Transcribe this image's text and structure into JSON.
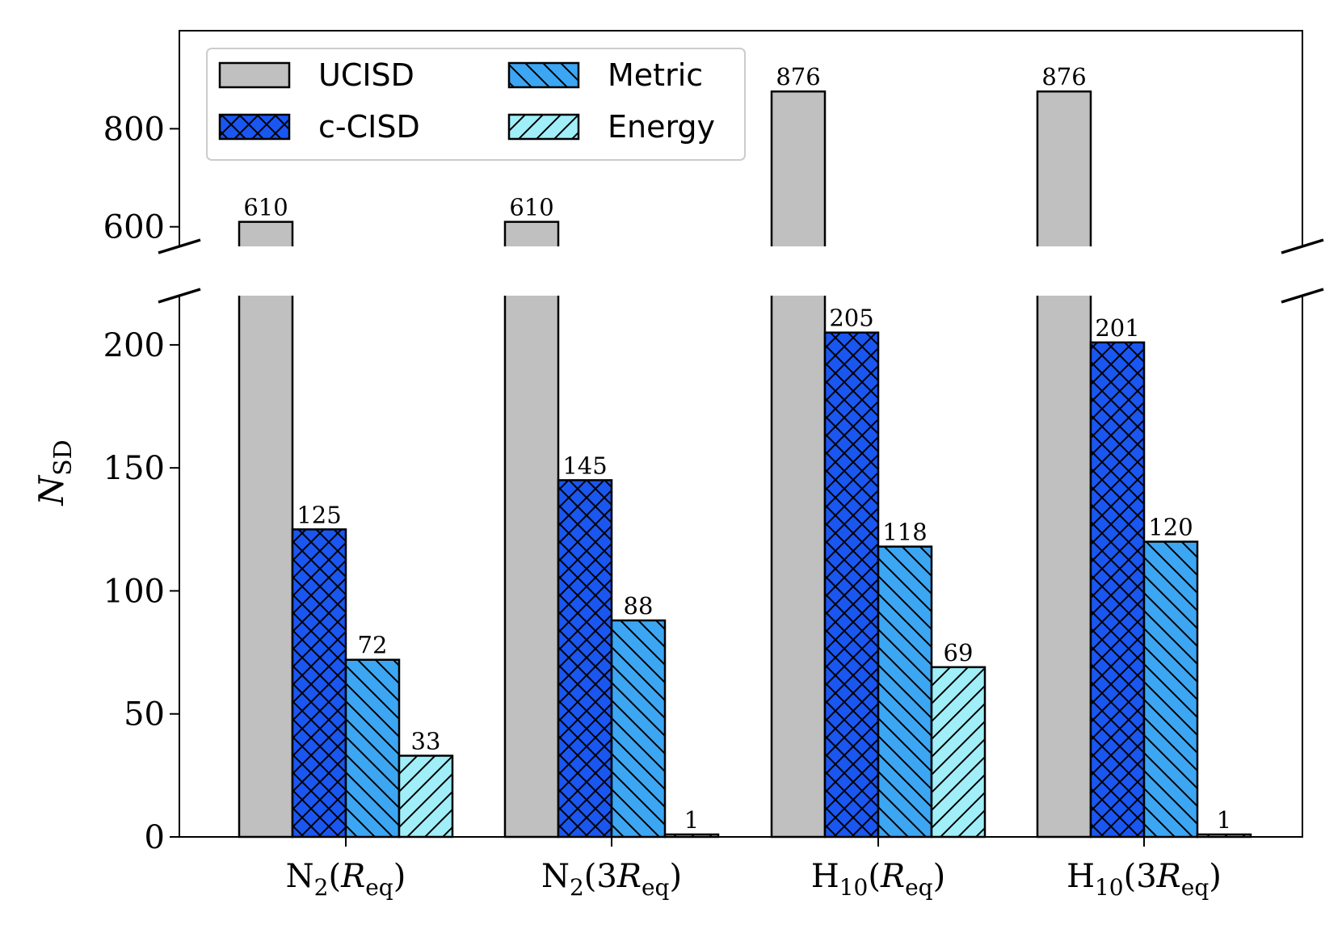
{
  "chart_data": {
    "type": "bar",
    "ylabel": "N",
    "ylabel_sub": "SD",
    "categories": [
      {
        "base": "N",
        "sub": "2",
        "args": [
          {
            "t": "("
          },
          {
            "t": "R",
            "i": true
          },
          {
            "t": "eq",
            "sub": true
          },
          {
            "t": ")"
          }
        ]
      },
      {
        "base": "N",
        "sub": "2",
        "args": [
          {
            "t": "(3"
          },
          {
            "t": "R",
            "i": true
          },
          {
            "t": "eq",
            "sub": true
          },
          {
            "t": ")"
          }
        ]
      },
      {
        "base": "H",
        "sub": "10",
        "args": [
          {
            "t": "("
          },
          {
            "t": "R",
            "i": true
          },
          {
            "t": "eq",
            "sub": true
          },
          {
            "t": ")"
          }
        ]
      },
      {
        "base": "H",
        "sub": "10",
        "args": [
          {
            "t": "(3"
          },
          {
            "t": "R",
            "i": true
          },
          {
            "t": "eq",
            "sub": true
          },
          {
            "t": ")"
          }
        ]
      }
    ],
    "series": [
      {
        "name": "UCISD",
        "values": [
          610,
          610,
          876,
          876
        ],
        "color": "#c0c0c0",
        "hatch": "none"
      },
      {
        "name": "c-CISD",
        "values": [
          125,
          145,
          205,
          201
        ],
        "color": "#1a56f0",
        "hatch": "cross"
      },
      {
        "name": "Metric",
        "values": [
          72,
          88,
          118,
          120
        ],
        "color": "#3ca6f2",
        "hatch": "backslash"
      },
      {
        "name": "Energy",
        "values": [
          33,
          1,
          69,
          1
        ],
        "color": "#a0eef8",
        "hatch": "slash"
      }
    ],
    "axis_break": true,
    "lower_ylim": [
      0,
      220
    ],
    "upper_ylim": [
      560,
      1000
    ],
    "lower_yticks": [
      0,
      50,
      100,
      150,
      200
    ],
    "upper_yticks": [
      600,
      800
    ],
    "legend": {
      "placement": "upper-left",
      "columns": 2
    },
    "grid": false
  }
}
